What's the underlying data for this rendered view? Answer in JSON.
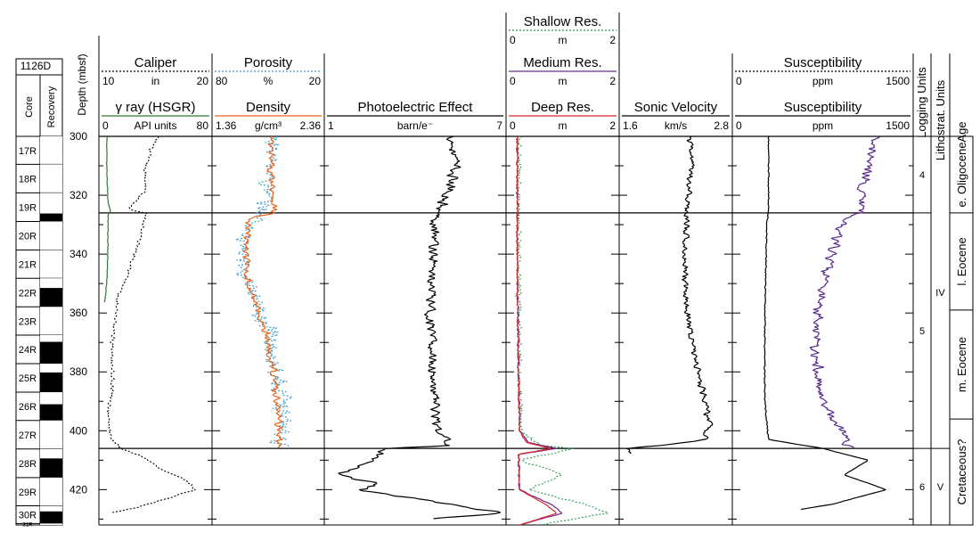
{
  "chart_data": {
    "type": "line",
    "hole_id": "1126D",
    "depth_label": "Depth (mbsf)",
    "depth_range": [
      300,
      432
    ],
    "depth_ticks": [
      "300",
      "320",
      "340",
      "360",
      "380",
      "400",
      "420"
    ],
    "core_column_label": "Core",
    "recovery_column_label": "Recovery",
    "cores": [
      {
        "name": "17R",
        "top": 300.0,
        "bottom": 309.5,
        "recovered_to": 309.5
      },
      {
        "name": "18R",
        "top": 309.5,
        "bottom": 319.2,
        "recovered_to": 319.2
      },
      {
        "name": "19R",
        "top": 319.2,
        "bottom": 328.9,
        "recovered_to": 326.2
      },
      {
        "name": "20R",
        "top": 328.9,
        "bottom": 338.6,
        "recovered_to": 338.6
      },
      {
        "name": "21R",
        "top": 338.6,
        "bottom": 348.2,
        "recovered_to": 348.2
      },
      {
        "name": "22R",
        "top": 348.2,
        "bottom": 357.9,
        "recovered_to": 351.5
      },
      {
        "name": "23R",
        "top": 357.9,
        "bottom": 367.5,
        "recovered_to": 367.5
      },
      {
        "name": "24R",
        "top": 367.5,
        "bottom": 377.2,
        "recovered_to": 369.8
      },
      {
        "name": "25R",
        "top": 377.2,
        "bottom": 386.9,
        "recovered_to": 380.2
      },
      {
        "name": "26R",
        "top": 386.9,
        "bottom": 396.5,
        "recovered_to": 391.0
      },
      {
        "name": "27R",
        "top": 396.5,
        "bottom": 406.2,
        "recovered_to": 406.2
      },
      {
        "name": "28R",
        "top": 406.2,
        "bottom": 415.9,
        "recovered_to": 409.4
      },
      {
        "name": "29R",
        "top": 415.9,
        "bottom": 425.5,
        "recovered_to": 425.5
      },
      {
        "name": "30R",
        "top": 425.5,
        "bottom": 431.5,
        "recovered_to": 427.4
      },
      {
        "name": "31R",
        "top": 431.5,
        "bottom": 432.0,
        "recovered_to": 432.0
      }
    ],
    "tracks": [
      {
        "id": "gr",
        "headers": [
          {
            "name": "Caliper",
            "unit": "in",
            "min": "10",
            "max": "20",
            "color": "#000000",
            "dash": "2,2"
          },
          {
            "name": "γ ray (HSGR)",
            "unit": "API units",
            "min": "0",
            "max": "80",
            "color": "#2e7d32",
            "dash": ""
          }
        ]
      },
      {
        "id": "den",
        "headers": [
          {
            "name": "Porosity",
            "unit": "%",
            "min": "80",
            "max": "20",
            "color": "#3399cc",
            "dash": "2,2"
          },
          {
            "name": "Density",
            "unit": "g/cm³",
            "min": "1.36",
            "max": "2.36",
            "color": "#e8651a",
            "dash": ""
          }
        ]
      },
      {
        "id": "pef",
        "headers": [
          {
            "name": "Photoelectric Effect",
            "unit": "barn/e⁻",
            "min": "1",
            "max": "7",
            "color": "#000000",
            "dash": ""
          }
        ]
      },
      {
        "id": "res",
        "headers": [
          {
            "name": "Shallow Res.",
            "unit": "m",
            "min": "0",
            "max": "2",
            "color": "#2e9b4f",
            "dash": "2,2"
          },
          {
            "name": "Medium Res.",
            "unit": "m",
            "min": "0",
            "max": "2",
            "color": "#6a2b8c",
            "dash": ""
          },
          {
            "name": "Deep Res.",
            "unit": "m",
            "min": "0",
            "max": "2",
            "color": "#e0262b",
            "dash": ""
          }
        ]
      },
      {
        "id": "sv",
        "headers": [
          {
            "name": "Sonic Velocity",
            "unit": "km/s",
            "min": "1.6",
            "max": "2.8",
            "color": "#000000",
            "dash": ""
          }
        ]
      },
      {
        "id": "sus",
        "headers": [
          {
            "name": "Susceptibility",
            "unit": "ppm",
            "min": "0",
            "max": "1500",
            "color": "#000000",
            "dash": "2,2"
          },
          {
            "name": "Susceptibility",
            "unit": "ppm",
            "min": "0",
            "max": "1500",
            "color": "#000000",
            "dash": ""
          }
        ]
      }
    ],
    "curves": [
      {
        "track": "gr",
        "color": "#2e7d32",
        "dash": "",
        "noise": 0.004,
        "points": [
          [
            300,
            0.07
          ],
          [
            310,
            0.07
          ],
          [
            322,
            0.08
          ],
          [
            325.5,
            0.1
          ],
          [
            327,
            0.08
          ],
          [
            340,
            0.08
          ],
          [
            350,
            0.07
          ],
          [
            356.5,
            0.05
          ]
        ]
      },
      {
        "track": "gr",
        "color": "#000000",
        "dash": "2,2",
        "noise": 0.02,
        "points": [
          [
            300,
            0.52
          ],
          [
            305,
            0.45
          ],
          [
            312,
            0.4
          ],
          [
            318,
            0.42
          ],
          [
            322,
            0.32
          ],
          [
            325,
            0.26
          ],
          [
            326,
            0.42
          ],
          [
            335,
            0.36
          ],
          [
            345,
            0.28
          ],
          [
            355,
            0.16
          ],
          [
            370,
            0.12
          ],
          [
            385,
            0.12
          ],
          [
            395,
            0.08
          ],
          [
            403,
            0.1
          ],
          [
            406,
            0.2
          ],
          [
            409,
            0.4
          ],
          [
            413,
            0.55
          ],
          [
            417,
            0.78
          ],
          [
            420,
            0.85
          ],
          [
            423,
            0.6
          ],
          [
            426,
            0.35
          ],
          [
            428,
            0.08
          ]
        ]
      },
      {
        "track": "den",
        "color": "#3399cc",
        "dash": "2,2",
        "noise": 0.1,
        "points": [
          [
            300,
            0.55
          ],
          [
            315,
            0.5
          ],
          [
            325,
            0.45
          ],
          [
            335,
            0.28
          ],
          [
            345,
            0.26
          ],
          [
            355,
            0.35
          ],
          [
            365,
            0.5
          ],
          [
            375,
            0.55
          ],
          [
            385,
            0.6
          ],
          [
            395,
            0.65
          ],
          [
            406,
            0.6
          ]
        ]
      },
      {
        "track": "den",
        "color": "#e8651a",
        "dash": "",
        "noise": 0.04,
        "points": [
          [
            300,
            0.52
          ],
          [
            310,
            0.52
          ],
          [
            320,
            0.55
          ],
          [
            326,
            0.55
          ],
          [
            328,
            0.32
          ],
          [
            340,
            0.3
          ],
          [
            350,
            0.32
          ],
          [
            360,
            0.42
          ],
          [
            370,
            0.5
          ],
          [
            380,
            0.55
          ],
          [
            390,
            0.58
          ],
          [
            400,
            0.6
          ],
          [
            406,
            0.6
          ]
        ]
      },
      {
        "track": "pef",
        "color": "#000000",
        "dash": "",
        "noise": 0.035,
        "points": [
          [
            300,
            0.7
          ],
          [
            310,
            0.72
          ],
          [
            320,
            0.68
          ],
          [
            326,
            0.62
          ],
          [
            340,
            0.6
          ],
          [
            360,
            0.58
          ],
          [
            380,
            0.6
          ],
          [
            400,
            0.62
          ],
          [
            405,
            0.7
          ],
          [
            406,
            0.35
          ],
          [
            410,
            0.25
          ],
          [
            415,
            0.08
          ],
          [
            418,
            0.3
          ],
          [
            420,
            0.2
          ],
          [
            425,
            0.7
          ],
          [
            428,
            0.98
          ],
          [
            430,
            0.6
          ]
        ]
      },
      {
        "track": "res",
        "color": "#2e9b4f",
        "dash": "2,2",
        "noise": 0.03,
        "points": [
          [
            300,
            0.11
          ],
          [
            340,
            0.11
          ],
          [
            380,
            0.12
          ],
          [
            400,
            0.13
          ],
          [
            405,
            0.3
          ],
          [
            406,
            0.6
          ],
          [
            410,
            0.12
          ],
          [
            415,
            0.5
          ],
          [
            420,
            0.2
          ],
          [
            425,
            0.7
          ],
          [
            428,
            0.9
          ],
          [
            432,
            0.3
          ]
        ]
      },
      {
        "track": "res",
        "color": "#6a2b8c",
        "dash": "",
        "noise": 0.01,
        "points": [
          [
            300,
            0.1
          ],
          [
            340,
            0.1
          ],
          [
            380,
            0.11
          ],
          [
            400,
            0.12
          ],
          [
            404,
            0.2
          ],
          [
            406,
            0.45
          ],
          [
            408,
            0.11
          ],
          [
            420,
            0.12
          ],
          [
            425,
            0.4
          ],
          [
            428,
            0.5
          ],
          [
            432,
            0.12
          ]
        ]
      },
      {
        "track": "res",
        "color": "#e0262b",
        "dash": "",
        "noise": 0.008,
        "points": [
          [
            300,
            0.1
          ],
          [
            340,
            0.1
          ],
          [
            380,
            0.11
          ],
          [
            400,
            0.12
          ],
          [
            404,
            0.18
          ],
          [
            406,
            0.4
          ],
          [
            408,
            0.11
          ],
          [
            420,
            0.12
          ],
          [
            425,
            0.35
          ],
          [
            428,
            0.45
          ],
          [
            432,
            0.12
          ]
        ]
      },
      {
        "track": "sv",
        "color": "#000000",
        "dash": "",
        "noise": 0.035,
        "points": [
          [
            300,
            0.62
          ],
          [
            310,
            0.64
          ],
          [
            325,
            0.6
          ],
          [
            340,
            0.58
          ],
          [
            360,
            0.6
          ],
          [
            380,
            0.7
          ],
          [
            398,
            0.8
          ],
          [
            403,
            0.75
          ],
          [
            405,
            0.4
          ],
          [
            406,
            0.05
          ],
          [
            408,
            0.12
          ]
        ]
      },
      {
        "track": "sus",
        "color": "#000000",
        "dash": "",
        "noise": 0.004,
        "points": [
          [
            300,
            0.2
          ],
          [
            326,
            0.2
          ],
          [
            330,
            0.19
          ],
          [
            360,
            0.18
          ],
          [
            390,
            0.18
          ],
          [
            403,
            0.2
          ],
          [
            406,
            0.5
          ],
          [
            410,
            0.75
          ],
          [
            415,
            0.62
          ],
          [
            420,
            0.85
          ],
          [
            425,
            0.55
          ],
          [
            427,
            0.35
          ]
        ]
      },
      {
        "track": "sus",
        "color": "#5a2a8a",
        "dash": "",
        "noise": 0.035,
        "points": [
          [
            300,
            0.78
          ],
          [
            326,
            0.7
          ],
          [
            330,
            0.6
          ],
          [
            350,
            0.5
          ],
          [
            370,
            0.45
          ],
          [
            390,
            0.5
          ],
          [
            400,
            0.6
          ],
          [
            406,
            0.65
          ]
        ]
      }
    ],
    "boundaries": [
      326,
      406
    ],
    "logging_units_label": "Logging Units",
    "logging_units": [
      {
        "name": "4",
        "top": 300,
        "bottom": 326
      },
      {
        "name": "5",
        "top": 326,
        "bottom": 406
      },
      {
        "name": "6",
        "top": 406,
        "bottom": 432
      }
    ],
    "lith_units_label": "Lithostrat. Units",
    "lith_units": [
      {
        "name": "IV",
        "top": 300,
        "bottom": 406
      },
      {
        "name": "V",
        "top": 406,
        "bottom": 432
      }
    ],
    "age_label": "Age",
    "ages": [
      {
        "name": "e. Oligocene",
        "top": 300,
        "bottom": 326
      },
      {
        "name": "l. Eocene",
        "top": 326,
        "bottom": 359
      },
      {
        "name": "m. Eocene",
        "top": 359,
        "bottom": 396
      },
      {
        "name": "Cretaceous?",
        "top": 396,
        "bottom": 432
      }
    ]
  }
}
